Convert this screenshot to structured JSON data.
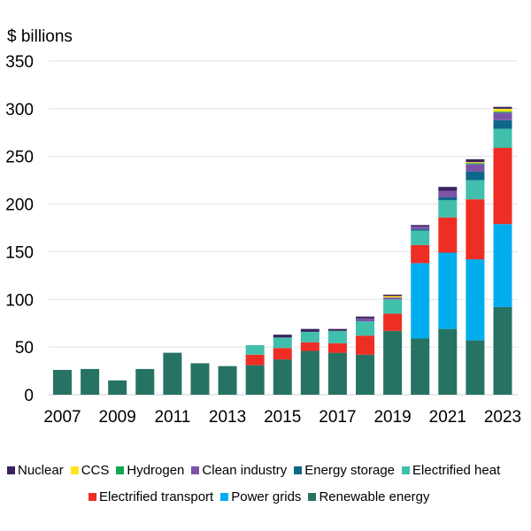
{
  "chart_data": {
    "type": "bar",
    "stacked": true,
    "title": "",
    "ylabel": "$ billions",
    "xlabel": "",
    "ylim": [
      0,
      350
    ],
    "yticks": [
      0,
      50,
      100,
      150,
      200,
      250,
      300,
      350
    ],
    "grid": true,
    "legend_position": "bottom",
    "categories": [
      "2007",
      "2008",
      "2009",
      "2010",
      "2011",
      "2012",
      "2013",
      "2014",
      "2015",
      "2016",
      "2017",
      "2018",
      "2019",
      "2020",
      "2021",
      "2022",
      "2023"
    ],
    "xtick_labels": [
      "2007",
      "2009",
      "2011",
      "2013",
      "2015",
      "2017",
      "2019",
      "2021",
      "2023"
    ],
    "series": [
      {
        "name": "Renewable energy",
        "color": "#267363",
        "values": [
          26,
          27,
          15,
          27,
          44,
          33,
          30,
          31,
          37,
          46,
          44,
          42,
          67,
          59,
          69,
          57,
          92
        ]
      },
      {
        "name": "Power grids",
        "color": "#00AEEF",
        "values": [
          0,
          0,
          0,
          0,
          0,
          0,
          0,
          0,
          0,
          0,
          0,
          0,
          0,
          79,
          80,
          85,
          87
        ]
      },
      {
        "name": "Electrified transport",
        "color": "#EE2E24",
        "values": [
          0,
          0,
          0,
          0,
          0,
          0,
          0,
          11,
          12,
          9,
          10,
          20,
          18,
          19,
          37,
          63,
          80
        ]
      },
      {
        "name": "Electrified heat",
        "color": "#41BFAD",
        "values": [
          0,
          0,
          0,
          0,
          0,
          0,
          0,
          10,
          11,
          11,
          13,
          15,
          15,
          15,
          18,
          20,
          20
        ]
      },
      {
        "name": "Energy storage",
        "color": "#0E6689",
        "values": [
          0,
          0,
          0,
          0,
          0,
          0,
          0,
          0,
          0,
          0,
          0,
          0,
          0,
          1.5,
          3,
          9,
          9
        ]
      },
      {
        "name": "Clean industry",
        "color": "#7B54A8",
        "values": [
          0,
          0,
          0,
          0,
          0,
          0,
          0,
          0,
          0,
          0,
          0,
          3,
          2,
          3,
          7,
          8,
          8
        ]
      },
      {
        "name": "Hydrogen",
        "color": "#11A94F",
        "values": [
          0,
          0,
          0,
          0,
          0,
          0,
          0,
          0,
          0,
          0,
          0,
          0,
          0,
          0,
          0,
          1,
          1
        ]
      },
      {
        "name": "CCS",
        "color": "#FFE51E",
        "values": [
          0,
          0,
          0,
          0,
          0,
          0,
          0,
          0,
          0,
          0,
          0,
          0,
          1.5,
          0,
          0,
          1,
          3
        ]
      },
      {
        "name": "Nuclear",
        "color": "#3A2360",
        "values": [
          0,
          0,
          0,
          0,
          0,
          0,
          0,
          0,
          3,
          3,
          2,
          2,
          1.5,
          1.5,
          4,
          3,
          2
        ]
      }
    ],
    "legend_rows": [
      [
        "Nuclear",
        "CCS",
        "Hydrogen",
        "Clean industry",
        "Energy storage",
        "Electrified heat"
      ],
      [
        "Electrified transport",
        "Power grids",
        "Renewable energy"
      ]
    ]
  }
}
